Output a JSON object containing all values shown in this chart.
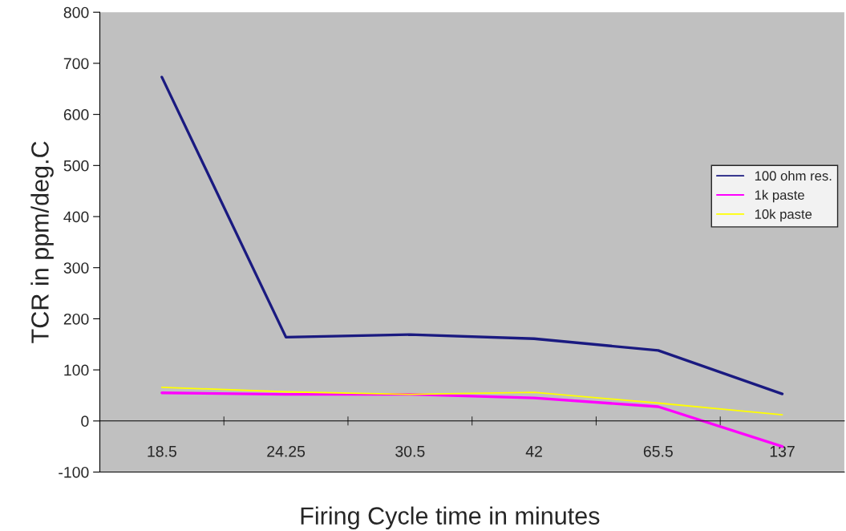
{
  "chart_data": {
    "type": "line",
    "xlabel": "Firing Cycle time in minutes",
    "ylabel": "TCR in ppm/deg.C",
    "categories": [
      "18.5",
      "24.25",
      "30.5",
      "42",
      "65.5",
      "137"
    ],
    "series": [
      {
        "name": "100 ohm res.",
        "color": "#1a1a80",
        "values": [
          673,
          164,
          169,
          161,
          138,
          53
        ]
      },
      {
        "name": "1k paste",
        "color": "#ff00ff",
        "values": [
          55,
          52,
          52,
          45,
          28,
          -50
        ]
      },
      {
        "name": "10k paste",
        "color": "#ffff00",
        "values": [
          66,
          57,
          52,
          56,
          35,
          12
        ]
      }
    ],
    "ylim": [
      -100,
      800
    ],
    "yticks": [
      -100,
      0,
      100,
      200,
      300,
      400,
      500,
      600,
      700,
      800
    ],
    "legend": "right",
    "marker": "none",
    "line_style": "solid"
  }
}
